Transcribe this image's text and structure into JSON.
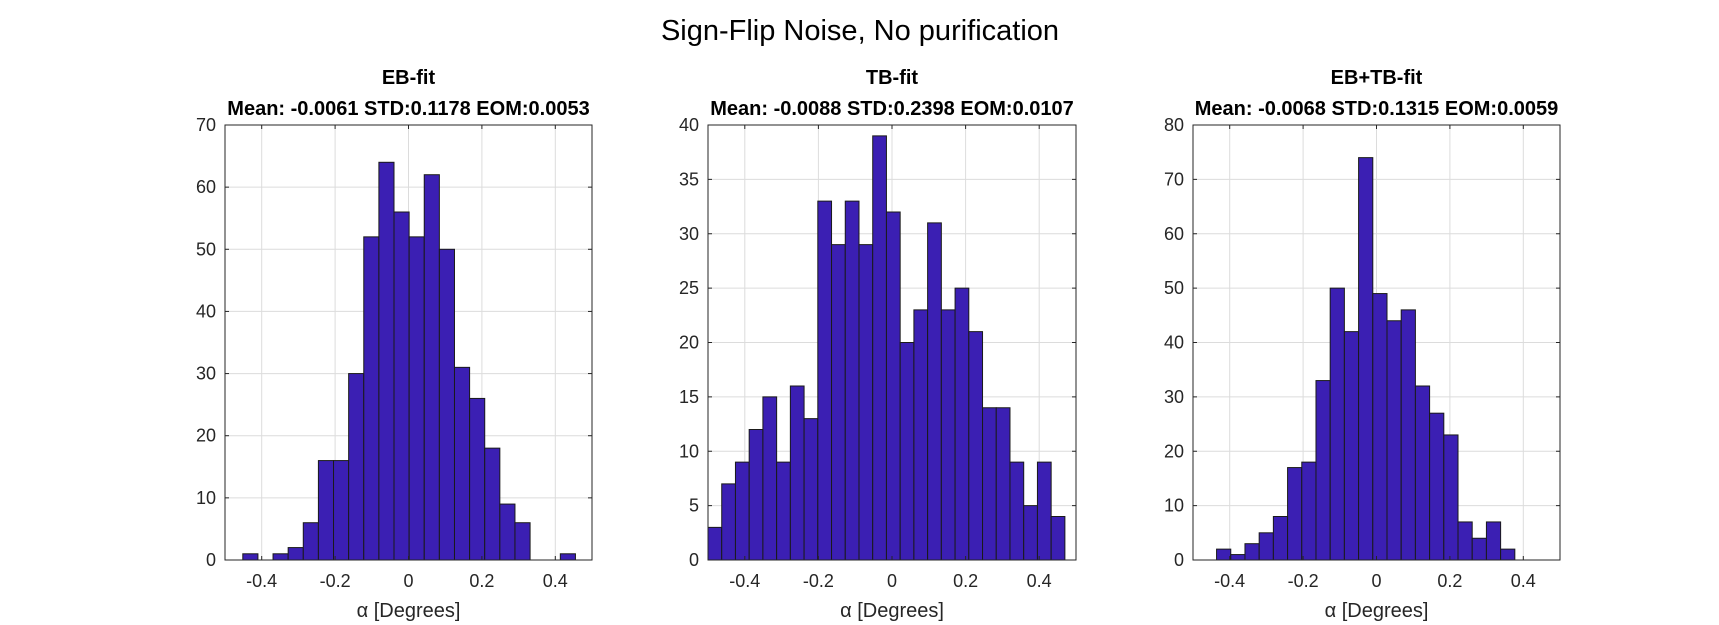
{
  "figure": {
    "title": "Sign-Flip Noise, No purification"
  },
  "chart_data": [
    {
      "type": "bar",
      "title": "EB-fit",
      "subtitle": "Mean: -0.0061 STD:0.1178 EOM:0.0053",
      "xlabel": "α [Degrees]",
      "ylabel": "",
      "xlim": [
        -0.5,
        0.5
      ],
      "ylim": [
        0,
        70
      ],
      "xticks": [
        -0.4,
        -0.2,
        0,
        0.2,
        0.4
      ],
      "xtick_labels": [
        "-0.4",
        "-0.2",
        "0",
        "0.2",
        "0.4"
      ],
      "yticks": [
        0,
        10,
        20,
        30,
        40,
        50,
        60,
        70
      ],
      "ytick_labels": [
        "0",
        "10",
        "20",
        "30",
        "40",
        "50",
        "60",
        "70"
      ],
      "grid": true,
      "bin_edges": [
        -0.4515,
        -0.4103,
        -0.3691,
        -0.3279,
        -0.2867,
        -0.2455,
        -0.2043,
        -0.1631,
        -0.1219,
        -0.0807,
        -0.0395,
        0.0017,
        0.0429,
        0.0841,
        0.1253,
        0.1665,
        0.2077,
        0.2489,
        0.2901,
        0.3313,
        0.3725,
        0.4137,
        0.4549
      ],
      "values": [
        1,
        0,
        1,
        2,
        6,
        16,
        16,
        30,
        52,
        64,
        56,
        52,
        62,
        50,
        31,
        26,
        18,
        9,
        6,
        0,
        0,
        1
      ]
    },
    {
      "type": "bar",
      "title": "TB-fit",
      "subtitle": "Mean: -0.0088 STD:0.2398 EOM:0.0107",
      "xlabel": "α [Degrees]",
      "ylabel": "",
      "xlim": [
        -0.5,
        0.5
      ],
      "ylim": [
        0,
        40
      ],
      "xticks": [
        -0.4,
        -0.2,
        0,
        0.2,
        0.4
      ],
      "xtick_labels": [
        "-0.4",
        "-0.2",
        "0",
        "0.2",
        "0.4"
      ],
      "yticks": [
        0,
        5,
        10,
        15,
        20,
        25,
        30,
        35,
        40
      ],
      "ytick_labels": [
        "0",
        "5",
        "10",
        "15",
        "20",
        "25",
        "30",
        "35",
        "40"
      ],
      "grid": true,
      "bin_edges": [
        -0.5,
        -0.4627,
        -0.4254,
        -0.3881,
        -0.3508,
        -0.3135,
        -0.2762,
        -0.2389,
        -0.2016,
        -0.1643,
        -0.127,
        -0.0897,
        -0.0524,
        -0.0151,
        0.0222,
        0.0595,
        0.0968,
        0.1341,
        0.1714,
        0.2087,
        0.246,
        0.2833,
        0.3206,
        0.3579,
        0.3952,
        0.4325,
        0.4698
      ],
      "values": [
        3,
        7,
        9,
        12,
        15,
        9,
        16,
        13,
        33,
        29,
        33,
        29,
        39,
        32,
        20,
        23,
        31,
        23,
        25,
        21,
        14,
        14,
        9,
        5,
        9,
        4
      ]
    },
    {
      "type": "bar",
      "title": "EB+TB-fit",
      "subtitle": "Mean: -0.0068 STD:0.1315 EOM:0.0059",
      "xlabel": "α [Degrees]",
      "ylabel": "",
      "xlim": [
        -0.5,
        0.5
      ],
      "ylim": [
        0,
        80
      ],
      "xticks": [
        -0.4,
        -0.2,
        0,
        0.2,
        0.4
      ],
      "xtick_labels": [
        "-0.4",
        "-0.2",
        "0",
        "0.2",
        "0.4"
      ],
      "yticks": [
        0,
        10,
        20,
        30,
        40,
        50,
        60,
        70,
        80
      ],
      "ytick_labels": [
        "0",
        "10",
        "20",
        "30",
        "40",
        "50",
        "60",
        "70",
        "80"
      ],
      "grid": true,
      "bin_edges": [
        -0.4358,
        -0.3971,
        -0.3584,
        -0.3197,
        -0.281,
        -0.2423,
        -0.2036,
        -0.1649,
        -0.1262,
        -0.0875,
        -0.0488,
        -0.0101,
        0.0286,
        0.0673,
        0.106,
        0.1447,
        0.1834,
        0.2221,
        0.2608,
        0.2995,
        0.3382,
        0.3769
      ],
      "values": [
        2,
        1,
        3,
        5,
        8,
        17,
        18,
        33,
        50,
        42,
        74,
        49,
        44,
        46,
        32,
        27,
        23,
        7,
        4,
        7,
        2
      ]
    }
  ],
  "style": {
    "bar_fill": "#3b1fb3",
    "bar_edge": "#1a1a1a"
  }
}
